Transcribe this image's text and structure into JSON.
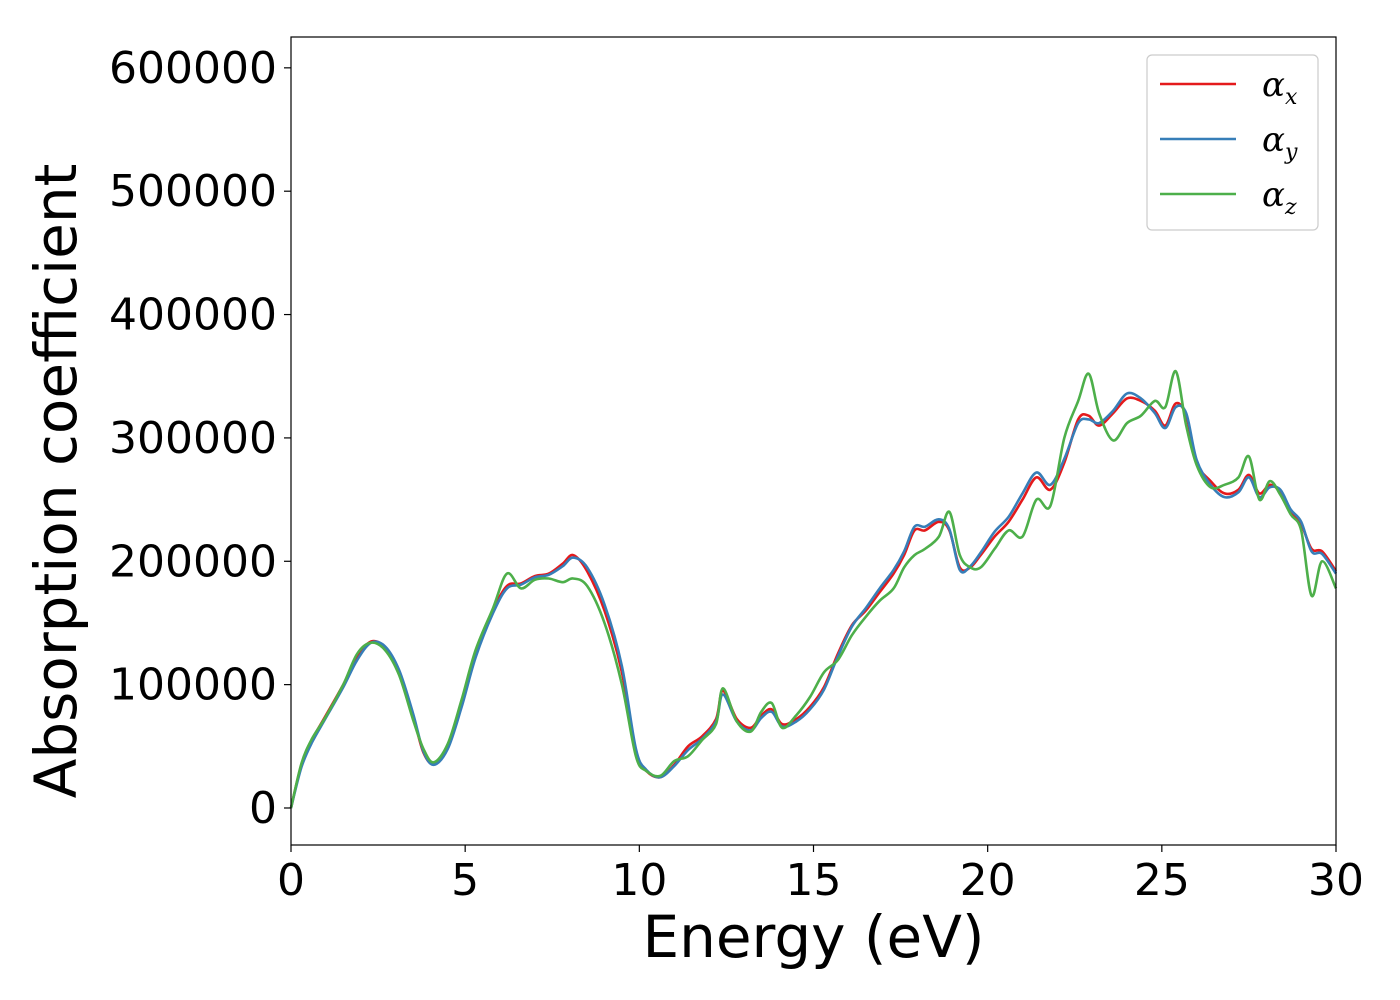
{
  "chart_data": {
    "type": "line",
    "xlabel": "Energy (eV)",
    "ylabel": "Absorption coefficient",
    "xlim": [
      0,
      30
    ],
    "ylim": [
      -30000,
      625000
    ],
    "xticks": [
      0,
      5,
      10,
      15,
      20,
      25,
      30
    ],
    "yticks": [
      0,
      100000,
      200000,
      300000,
      400000,
      500000,
      600000
    ],
    "grid": false,
    "legend_position": "top-right",
    "x": [
      0,
      0.3,
      0.6,
      1.0,
      1.5,
      1.9,
      2.3,
      2.7,
      3.1,
      3.5,
      3.8,
      4.1,
      4.5,
      4.9,
      5.3,
      5.8,
      6.2,
      6.6,
      7.0,
      7.4,
      7.8,
      8.1,
      8.5,
      9.0,
      9.5,
      9.9,
      10.2,
      10.6,
      11.0,
      11.4,
      11.8,
      12.2,
      12.4,
      12.8,
      13.2,
      13.5,
      13.8,
      14.1,
      14.5,
      14.9,
      15.3,
      15.7,
      16.1,
      16.5,
      16.9,
      17.3,
      17.6,
      17.9,
      18.2,
      18.6,
      18.9,
      19.2,
      19.5,
      19.8,
      20.2,
      20.6,
      21.0,
      21.4,
      21.8,
      22.2,
      22.6,
      22.9,
      23.2,
      23.6,
      24.0,
      24.4,
      24.8,
      25.1,
      25.4,
      25.7,
      26.0,
      26.4,
      26.8,
      27.2,
      27.5,
      27.8,
      28.1,
      28.4,
      28.7,
      29.0,
      29.3,
      29.6,
      30.0
    ],
    "series": [
      {
        "name": "αx",
        "color": "#e41a1c",
        "values": [
          0,
          35000,
          55000,
          75000,
          100000,
          122000,
          135000,
          130000,
          110000,
          75000,
          45000,
          36000,
          50000,
          85000,
          125000,
          160000,
          180000,
          182000,
          188000,
          190000,
          198000,
          205000,
          192000,
          160000,
          110000,
          45000,
          30000,
          25000,
          35000,
          50000,
          58000,
          72000,
          95000,
          72000,
          65000,
          75000,
          80000,
          68000,
          72000,
          82000,
          98000,
          125000,
          148000,
          160000,
          175000,
          190000,
          205000,
          225000,
          225000,
          232000,
          225000,
          195000,
          195000,
          205000,
          220000,
          232000,
          250000,
          268000,
          258000,
          280000,
          315000,
          318000,
          310000,
          320000,
          332000,
          330000,
          322000,
          310000,
          328000,
          318000,
          280000,
          265000,
          255000,
          258000,
          270000,
          255000,
          262000,
          256000,
          240000,
          230000,
          210000,
          208000,
          192000
        ]
      },
      {
        "name": "αy",
        "color": "#377eb8",
        "values": [
          0,
          33000,
          53000,
          73000,
          98000,
          120000,
          134000,
          131000,
          112000,
          77000,
          46000,
          35000,
          48000,
          82000,
          122000,
          158000,
          178000,
          181000,
          187000,
          189000,
          196000,
          203000,
          195000,
          165000,
          115000,
          48000,
          31000,
          25000,
          34000,
          47000,
          56000,
          70000,
          92000,
          70000,
          63000,
          73000,
          78000,
          66000,
          70000,
          80000,
          96000,
          123000,
          147000,
          162000,
          178000,
          193000,
          208000,
          228000,
          228000,
          234000,
          226000,
          193000,
          196000,
          207000,
          224000,
          236000,
          255000,
          272000,
          262000,
          283000,
          312000,
          315000,
          312000,
          322000,
          336000,
          332000,
          320000,
          308000,
          325000,
          320000,
          282000,
          262000,
          252000,
          256000,
          268000,
          252000,
          260000,
          258000,
          242000,
          232000,
          208000,
          206000,
          190000
        ]
      },
      {
        "name": "αz",
        "color": "#4daf4a",
        "values": [
          0,
          36000,
          56000,
          74000,
          100000,
          125000,
          134000,
          128000,
          108000,
          72000,
          48000,
          37000,
          52000,
          88000,
          128000,
          162000,
          190000,
          178000,
          185000,
          186000,
          183000,
          186000,
          180000,
          150000,
          100000,
          42000,
          30000,
          26000,
          38000,
          42000,
          55000,
          68000,
          97000,
          70000,
          62000,
          78000,
          85000,
          65000,
          75000,
          90000,
          110000,
          120000,
          140000,
          155000,
          168000,
          178000,
          195000,
          205000,
          210000,
          220000,
          240000,
          205000,
          195000,
          195000,
          210000,
          225000,
          220000,
          250000,
          245000,
          300000,
          330000,
          352000,
          320000,
          298000,
          312000,
          318000,
          330000,
          325000,
          354000,
          310000,
          278000,
          260000,
          262000,
          268000,
          285000,
          250000,
          265000,
          254000,
          238000,
          225000,
          172000,
          200000,
          178000
        ]
      }
    ]
  }
}
